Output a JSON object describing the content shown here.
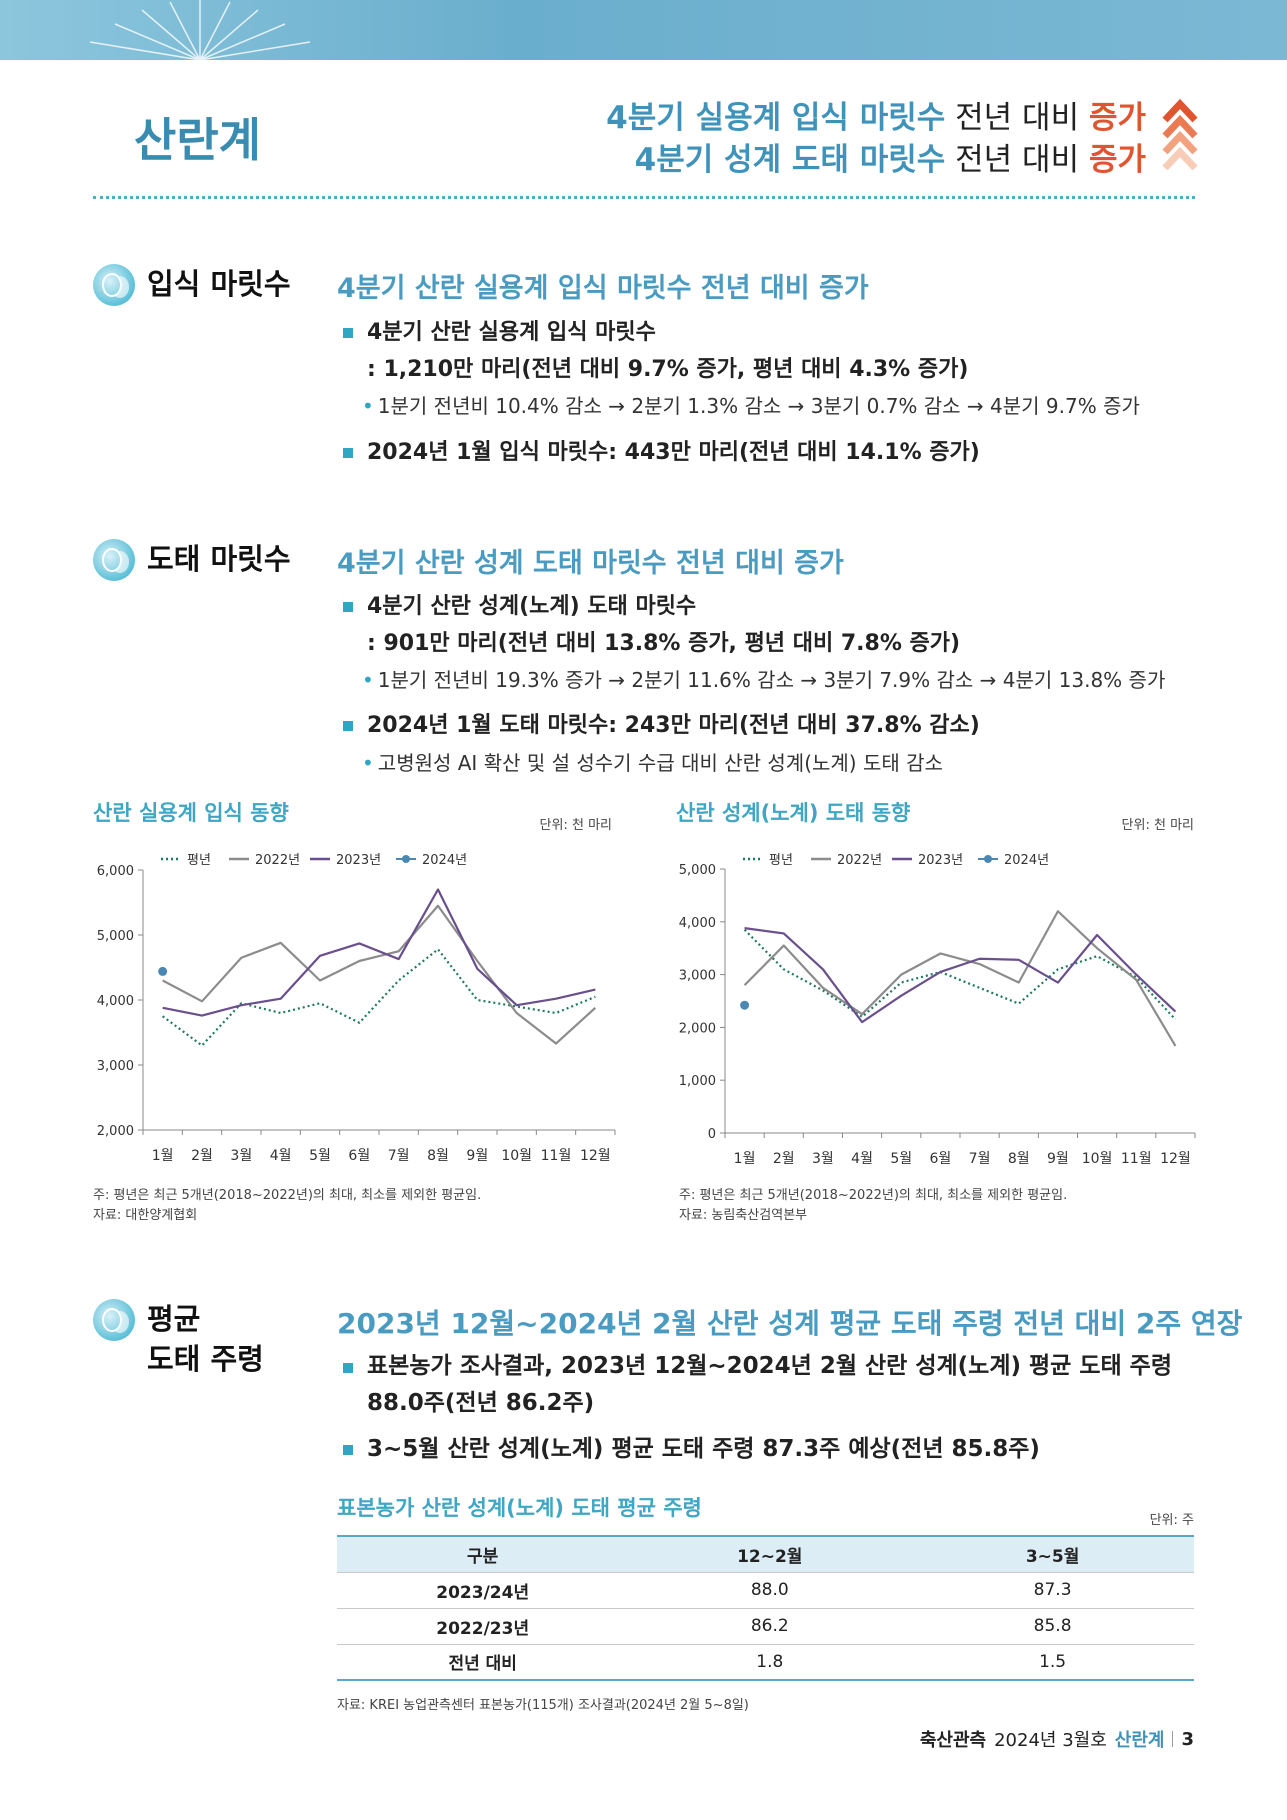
{
  "header": {
    "title": "산란계",
    "headlines": [
      {
        "subject": "4분기 실용계 입식 마릿수",
        "comparison": "전년 대비",
        "trend": "증가"
      },
      {
        "subject": "4분기 성계 도태 마릿수",
        "comparison": "전년 대비",
        "trend": "증가"
      }
    ]
  },
  "sections": [
    {
      "label_lines": [
        "입식 마릿수"
      ],
      "heading": "4분기 산란 실용계 입식 마릿수 전년 대비 증가",
      "bullets": [
        {
          "lines": [
            "4분기 산란 실용계 입식 마릿수",
            ": 1,210만 마리(전년 대비 9.7% 증가, 평년 대비 4.3% 증가)"
          ],
          "subs": [
            "1분기 전년비 10.4% 감소 → 2분기 1.3% 감소 → 3분기 0.7% 감소 → 4분기 9.7% 증가"
          ]
        },
        {
          "lines": [
            "2024년 1월 입식 마릿수: 443만 마리(전년 대비 14.1% 증가)"
          ],
          "subs": []
        }
      ]
    },
    {
      "label_lines": [
        "도태 마릿수"
      ],
      "heading": "4분기 산란 성계 도태 마릿수 전년 대비 증가",
      "bullets": [
        {
          "lines": [
            "4분기 산란 성계(노계) 도태 마릿수",
            ": 901만 마리(전년 대비 13.8% 증가, 평년 대비 7.8% 증가)"
          ],
          "subs": [
            "1분기 전년비 19.3% 증가 → 2분기 11.6% 감소 → 3분기 7.9% 감소 → 4분기 13.8% 증가"
          ]
        },
        {
          "lines": [
            "2024년 1월 도태 마릿수: 243만 마리(전년 대비 37.8% 감소)"
          ],
          "subs": [
            "고병원성 AI 확산 및 설 성수기 수급 대비 산란 성계(노계) 도태 감소"
          ]
        }
      ]
    },
    {
      "label_lines": [
        "평균",
        "도태 주령"
      ],
      "heading": "2023년 12월~2024년 2월 산란 성계 평균 도태 주령 전년 대비 2주 연장",
      "bullets": [
        {
          "lines": [
            "표본농가 조사결과, 2023년 12월~2024년 2월 산란 성계(노계) 평균 도태 주령",
            "88.0주(전년 86.2주)"
          ],
          "subs": []
        },
        {
          "lines": [
            "3~5월 산란 성계(노계) 평균 도태 주령 87.3주 예상(전년 85.8주)"
          ],
          "subs": []
        }
      ]
    }
  ],
  "charts": [
    {
      "type": "line",
      "title": "산란 실용계 입식 동향",
      "unit": "단위: 천 마리",
      "categories": [
        "1월",
        "2월",
        "3월",
        "4월",
        "5월",
        "6월",
        "7월",
        "8월",
        "9월",
        "10월",
        "11월",
        "12월"
      ],
      "ylim": [
        2000,
        6000
      ],
      "yticks": [
        {
          "value": 2000,
          "label": "2,000"
        },
        {
          "value": 3000,
          "label": "3,000"
        },
        {
          "value": 4000,
          "label": "4,000"
        },
        {
          "value": 5000,
          "label": "5,000"
        },
        {
          "value": 6000,
          "label": "6,000"
        }
      ],
      "series": [
        {
          "name": "평년",
          "color": "#1f7a5c",
          "style": "dotted",
          "values": [
            3750,
            3300,
            3950,
            3800,
            3950,
            3650,
            4300,
            4780,
            4000,
            3900,
            3800,
            4050
          ]
        },
        {
          "name": "2022년",
          "color": "#8c8c8c",
          "style": "solid",
          "values": [
            4300,
            3980,
            4650,
            4880,
            4300,
            4600,
            4750,
            5450,
            4600,
            3800,
            3330,
            3880
          ]
        },
        {
          "name": "2023년",
          "color": "#6a4f8e",
          "style": "solid",
          "values": [
            3880,
            3760,
            3920,
            4020,
            4680,
            4870,
            4630,
            5700,
            4480,
            3920,
            4020,
            4160
          ]
        },
        {
          "name": "2024년",
          "color": "#4a88b3",
          "style": "point",
          "values": [
            4440,
            null,
            null,
            null,
            null,
            null,
            null,
            null,
            null,
            null,
            null,
            null
          ]
        }
      ],
      "notes": [
        "주: 평년은 최근 5개년(2018~2022년)의 최대, 최소를 제외한 평균임.",
        "자료: 대한양계협회"
      ]
    },
    {
      "type": "line",
      "title": "산란 성계(노계) 도태 동향",
      "unit": "단위: 천 마리",
      "categories": [
        "1월",
        "2월",
        "3월",
        "4월",
        "5월",
        "6월",
        "7월",
        "8월",
        "9월",
        "10월",
        "11월",
        "12월"
      ],
      "ylim": [
        0,
        5000
      ],
      "yticks": [
        0,
        {
          "value": 1000,
          "label": "1,000"
        },
        {
          "value": 2000,
          "label": "2,000"
        },
        {
          "value": 3000,
          "label": "3,000"
        },
        {
          "value": 4000,
          "label": "4,000"
        },
        {
          "value": 5000,
          "label": "5,000"
        }
      ],
      "series": [
        {
          "name": "평년",
          "color": "#1f7a5c",
          "style": "dotted",
          "values": [
            3850,
            3100,
            2700,
            2200,
            2850,
            3050,
            2750,
            2450,
            3100,
            3350,
            2950,
            2150
          ]
        },
        {
          "name": "2022년",
          "color": "#8c8c8c",
          "style": "solid",
          "values": [
            2800,
            3550,
            2750,
            2250,
            3000,
            3400,
            3200,
            2850,
            4200,
            3500,
            2900,
            1650
          ]
        },
        {
          "name": "2023년",
          "color": "#6a4f8e",
          "style": "solid",
          "values": [
            3880,
            3780,
            3100,
            2100,
            2600,
            3050,
            3300,
            3280,
            2850,
            3750,
            3000,
            2300
          ]
        },
        {
          "name": "2024년",
          "color": "#4a88b3",
          "style": "point",
          "values": [
            2420,
            null,
            null,
            null,
            null,
            null,
            null,
            null,
            null,
            null,
            null,
            null
          ]
        }
      ],
      "notes": [
        "주: 평년은 최근 5개년(2018~2022년)의 최대, 최소를 제외한 평균임.",
        "자료: 농림축산검역본부"
      ]
    }
  ],
  "table": {
    "title": "표본농가 산란 성계(노계) 도태 평균 주령",
    "unit": "단위: 주",
    "columns": [
      "구분",
      "12~2월",
      "3~5월"
    ],
    "rows": [
      [
        "2023/24년",
        "88.0",
        "87.3"
      ],
      [
        "2022/23년",
        "86.2",
        "85.8"
      ],
      [
        "전년 대비",
        "1.8",
        "1.5"
      ]
    ],
    "source": "자료: KREI 농업관측센터 표본농가(115개) 조사결과(2024년 2월 5~8일)"
  },
  "footer": {
    "publication": "축산관측",
    "issue": "2024년 3월호",
    "section": "산란계",
    "page": "3"
  }
}
